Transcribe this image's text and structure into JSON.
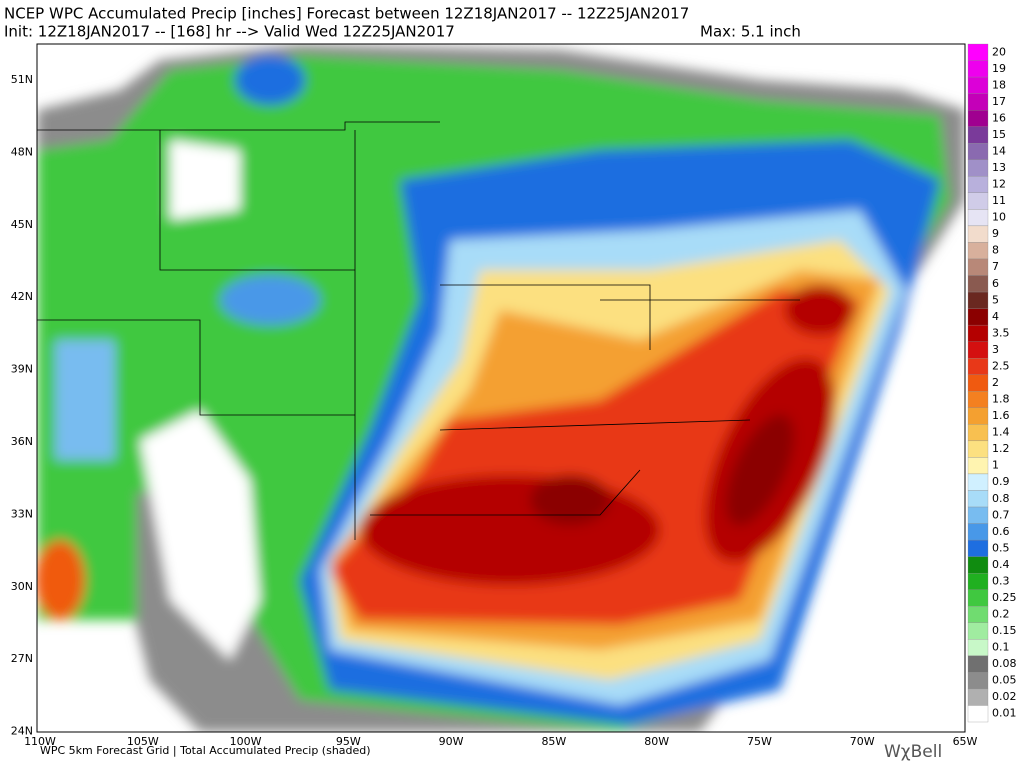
{
  "header": {
    "title": "NCEP WPC Accumulated Precip [inches] Forecast between 12Z18JAN2017 -- 12Z25JAN2017",
    "subtitle": "Init: 12Z18JAN2017 -- [168] hr --> Valid Wed 12Z25JAN2017",
    "max": "Max: 5.1 inch"
  },
  "map": {
    "lat_labels": [
      "51N",
      "48N",
      "45N",
      "42N",
      "39N",
      "36N",
      "33N",
      "30N",
      "27N",
      "24N"
    ],
    "lon_labels": [
      "110W",
      "105W",
      "100W",
      "95W",
      "90W",
      "85W",
      "80W",
      "75W",
      "70W",
      "65W"
    ]
  },
  "legend": {
    "levels": [
      {
        "label": "20",
        "color": "#ff00ff"
      },
      {
        "label": "19",
        "color": "#ee00ee"
      },
      {
        "label": "18",
        "color": "#dc00d8"
      },
      {
        "label": "17",
        "color": "#c400b8"
      },
      {
        "label": "16",
        "color": "#a00090"
      },
      {
        "label": "15",
        "color": "#7a3a9a"
      },
      {
        "label": "14",
        "color": "#8a6ab0"
      },
      {
        "label": "13",
        "color": "#a090c8"
      },
      {
        "label": "12",
        "color": "#b8b0dc"
      },
      {
        "label": "11",
        "color": "#d0cce8"
      },
      {
        "label": "10",
        "color": "#e6e4f4"
      },
      {
        "label": "9",
        "color": "#f2dccc"
      },
      {
        "label": "8",
        "color": "#d8b09c"
      },
      {
        "label": "7",
        "color": "#b88878"
      },
      {
        "label": "6",
        "color": "#8a5a50"
      },
      {
        "label": "5",
        "color": "#6a2820"
      },
      {
        "label": "4",
        "color": "#8b0000"
      },
      {
        "label": "3.5",
        "color": "#b40000"
      },
      {
        "label": "3",
        "color": "#d41010"
      },
      {
        "label": "2.5",
        "color": "#e83818"
      },
      {
        "label": "2",
        "color": "#f05a10"
      },
      {
        "label": "1.8",
        "color": "#f48020"
      },
      {
        "label": "1.6",
        "color": "#f4a030"
      },
      {
        "label": "1.4",
        "color": "#f8c050"
      },
      {
        "label": "1.2",
        "color": "#fce080"
      },
      {
        "label": "1",
        "color": "#fff4b0"
      },
      {
        "label": "0.9",
        "color": "#d0f0ff"
      },
      {
        "label": "0.8",
        "color": "#a8dcf8"
      },
      {
        "label": "0.7",
        "color": "#78bcf0"
      },
      {
        "label": "0.6",
        "color": "#4898e8"
      },
      {
        "label": "0.5",
        "color": "#1e6ee0"
      },
      {
        "label": "0.4",
        "color": "#108c10"
      },
      {
        "label": "0.3",
        "color": "#20b020"
      },
      {
        "label": "0.25",
        "color": "#40c840"
      },
      {
        "label": "0.2",
        "color": "#70dc70"
      },
      {
        "label": "0.15",
        "color": "#a0eca0"
      },
      {
        "label": "0.1",
        "color": "#c8f8c8"
      },
      {
        "label": "0.08",
        "color": "#707070"
      },
      {
        "label": "0.05",
        "color": "#8c8c8c"
      },
      {
        "label": "0.02",
        "color": "#b0b0b0"
      },
      {
        "label": "0.01",
        "color": "#ffffff"
      }
    ]
  },
  "footer": {
    "caption": "WPC 5km Forecast Grid | Total Accumulated Precip (shaded)",
    "logo": "WχBell"
  }
}
